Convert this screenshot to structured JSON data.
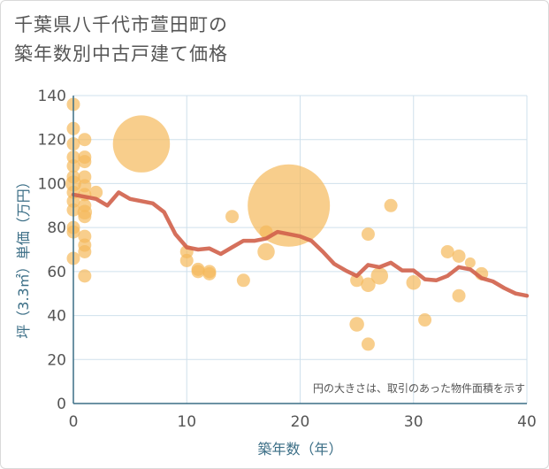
{
  "chart_data": {
    "type": "scatter",
    "title_lines": [
      "千葉県八千代市萱田町の",
      "築年数別中古戸建て価格"
    ],
    "xlabel": "築年数（年）",
    "ylabel": "坪（3.3㎡）単価（万円）",
    "xlim": [
      0,
      40
    ],
    "ylim": [
      0,
      140
    ],
    "xticks": [
      0,
      10,
      20,
      30,
      40
    ],
    "yticks": [
      0,
      20,
      40,
      60,
      80,
      100,
      120,
      140
    ],
    "grid": true,
    "note": "円の大きさは、取引のあった物件面積を示す",
    "colors": {
      "bubble": "#f5b95b",
      "line": "#d0604a",
      "grid": "#cfe0ec",
      "axis": "#3b6e86"
    },
    "bubbles": [
      {
        "x": 0,
        "y": 136,
        "s": 1
      },
      {
        "x": 0,
        "y": 125,
        "s": 1
      },
      {
        "x": 0,
        "y": 118,
        "s": 1
      },
      {
        "x": 0,
        "y": 112,
        "s": 1
      },
      {
        "x": 0,
        "y": 108,
        "s": 1
      },
      {
        "x": 0,
        "y": 103,
        "s": 1
      },
      {
        "x": 0,
        "y": 100,
        "s": 1.2
      },
      {
        "x": 0,
        "y": 96,
        "s": 1
      },
      {
        "x": 0,
        "y": 92,
        "s": 1
      },
      {
        "x": 0,
        "y": 88,
        "s": 1
      },
      {
        "x": 0,
        "y": 80,
        "s": 1
      },
      {
        "x": 0,
        "y": 78,
        "s": 1
      },
      {
        "x": 0,
        "y": 66,
        "s": 1
      },
      {
        "x": 1,
        "y": 120,
        "s": 1
      },
      {
        "x": 1,
        "y": 112,
        "s": 1
      },
      {
        "x": 1,
        "y": 110,
        "s": 1
      },
      {
        "x": 1,
        "y": 103,
        "s": 1
      },
      {
        "x": 1,
        "y": 99,
        "s": 1
      },
      {
        "x": 1,
        "y": 95,
        "s": 1
      },
      {
        "x": 1,
        "y": 90,
        "s": 1
      },
      {
        "x": 1,
        "y": 87,
        "s": 1.1
      },
      {
        "x": 1,
        "y": 85,
        "s": 1
      },
      {
        "x": 1,
        "y": 76,
        "s": 1
      },
      {
        "x": 1,
        "y": 72,
        "s": 1
      },
      {
        "x": 1,
        "y": 69,
        "s": 1
      },
      {
        "x": 1,
        "y": 58,
        "s": 1
      },
      {
        "x": 2,
        "y": 96,
        "s": 1
      },
      {
        "x": 6,
        "y": 118,
        "s": 4.3
      },
      {
        "x": 10,
        "y": 69,
        "s": 1
      },
      {
        "x": 10,
        "y": 65,
        "s": 1
      },
      {
        "x": 11,
        "y": 61,
        "s": 1
      },
      {
        "x": 11,
        "y": 60,
        "s": 1
      },
      {
        "x": 12,
        "y": 60,
        "s": 1
      },
      {
        "x": 12,
        "y": 59,
        "s": 1
      },
      {
        "x": 14,
        "y": 85,
        "s": 1
      },
      {
        "x": 15,
        "y": 56,
        "s": 1
      },
      {
        "x": 17,
        "y": 78,
        "s": 1
      },
      {
        "x": 17,
        "y": 69,
        "s": 1.3
      },
      {
        "x": 19,
        "y": 90,
        "s": 6.2
      },
      {
        "x": 25,
        "y": 56,
        "s": 1
      },
      {
        "x": 25,
        "y": 36,
        "s": 1.1
      },
      {
        "x": 26,
        "y": 77,
        "s": 1
      },
      {
        "x": 26,
        "y": 54,
        "s": 1.1
      },
      {
        "x": 26,
        "y": 27,
        "s": 1
      },
      {
        "x": 27,
        "y": 58,
        "s": 1.3
      },
      {
        "x": 28,
        "y": 90,
        "s": 1
      },
      {
        "x": 30,
        "y": 55,
        "s": 1.1
      },
      {
        "x": 31,
        "y": 38,
        "s": 1
      },
      {
        "x": 33,
        "y": 69,
        "s": 1
      },
      {
        "x": 34,
        "y": 67,
        "s": 1
      },
      {
        "x": 34,
        "y": 49,
        "s": 1
      },
      {
        "x": 35,
        "y": 64,
        "s": 0.8
      },
      {
        "x": 36,
        "y": 59,
        "s": 1
      }
    ],
    "series": [
      {
        "x": [
          0,
          1,
          2,
          3,
          4,
          5,
          6,
          7,
          8,
          9,
          10,
          11,
          12,
          13,
          14,
          15,
          16,
          17,
          18,
          19,
          20,
          21,
          22,
          23,
          24,
          25,
          26,
          27,
          28,
          29,
          30,
          31,
          32,
          33,
          34,
          35,
          36,
          37,
          38,
          39,
          40
        ],
        "values": [
          95,
          94,
          93,
          90,
          96,
          93,
          92,
          91,
          87,
          77,
          71,
          70,
          70.5,
          68,
          71,
          74,
          74,
          75,
          78,
          77,
          76,
          74,
          69,
          63.5,
          60.5,
          58,
          63,
          62,
          64,
          60.5,
          60.5,
          56.5,
          56,
          58,
          62,
          61,
          57,
          55.5,
          52.5,
          50,
          49
        ]
      }
    ]
  }
}
